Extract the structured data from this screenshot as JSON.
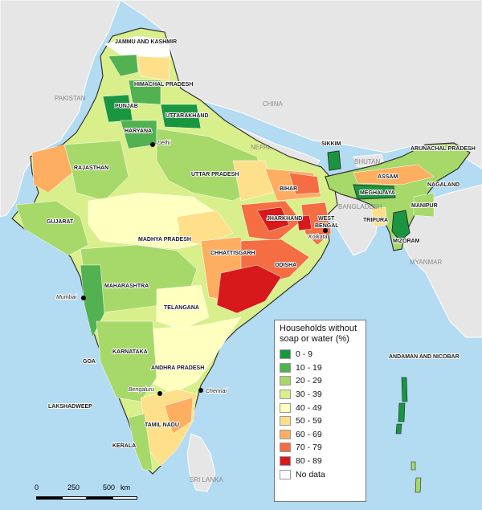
{
  "colors": {
    "sea": "#b3dbf2",
    "land_other": "#e6e6e6",
    "no_data": "#ffffff",
    "bins": [
      "#1a9641",
      "#52b151",
      "#a6d96a",
      "#d9ef8b",
      "#ffffbf",
      "#fee08b",
      "#fdae61",
      "#f46d43",
      "#d7191c"
    ]
  },
  "countries": [
    "PAKISTAN",
    "CHINA",
    "NEPAL",
    "BHUTAN",
    "BANGLADESH",
    "MYANMAR",
    "SRI LANKA"
  ],
  "states": [
    "JAMMU AND KASHMIR",
    "HIMACHAL PRADESH",
    "PUNJAB",
    "UTTARAKHAND",
    "HARYANA",
    "RAJASTHAN",
    "UTTAR PRADESH",
    "SIKKIM",
    "ARUNACHAL PRADESH",
    "ASSAM",
    "NAGALAND",
    "MEGHALAYA",
    "MANIPUR",
    "BIHAR",
    "JHARKHAND",
    "WEST BENGAL",
    "TRIPURA",
    "MIZORAM",
    "GUJARAT",
    "MADHYA PRADESH",
    "CHHATTISGARH",
    "ODISHA",
    "MAHARASHTRA",
    "TELANGANA",
    "KARNATAKA",
    "GOA",
    "ANDHRA PRADESH",
    "TAMIL NADU",
    "KERALA",
    "LAKSHADWEEP",
    "ANDAMAN AND NICOBAR"
  ],
  "cities": [
    "Delhi",
    "Kolkata",
    "Mumbai",
    "Bengaluru",
    "Chennai"
  ],
  "legend": {
    "title_line1": "Households without",
    "title_line2": "soap or water (%)",
    "items": [
      {
        "label": "0 - 9",
        "color": "#1a9641"
      },
      {
        "label": "10 - 19",
        "color": "#52b151"
      },
      {
        "label": "20 - 29",
        "color": "#a6d96a"
      },
      {
        "label": "30 - 39",
        "color": "#d9ef8b"
      },
      {
        "label": "40 - 49",
        "color": "#ffffbf"
      },
      {
        "label": "50 - 59",
        "color": "#fee08b"
      },
      {
        "label": "60 - 69",
        "color": "#fdae61"
      },
      {
        "label": "70 - 79",
        "color": "#f46d43"
      },
      {
        "label": "80 - 89",
        "color": "#d7191c"
      },
      {
        "label": "No data",
        "color": "#ffffff"
      }
    ]
  },
  "scale_bar": {
    "ticks": [
      "0",
      "250",
      "500"
    ],
    "unit": "km"
  }
}
